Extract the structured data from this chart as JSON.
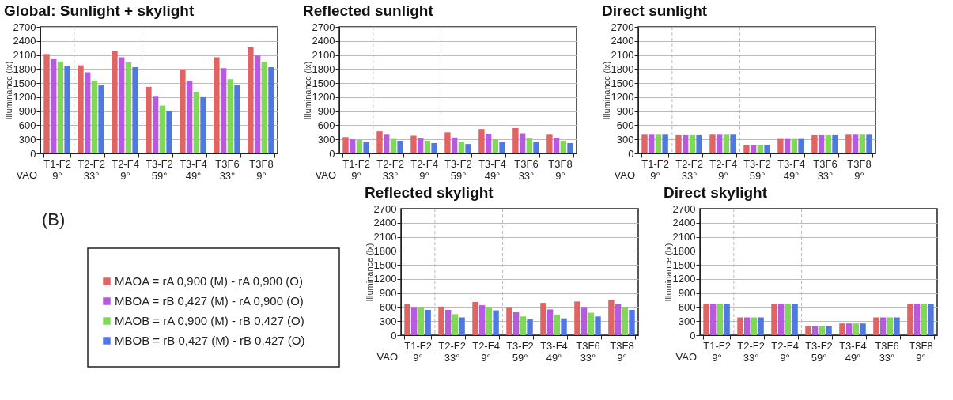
{
  "chart_data": [
    {
      "type": "bar",
      "title": "Global: Sunlight + skylight",
      "ylabel": "Illuminance (lx)",
      "categories": [
        "T1-F2 9°",
        "T2-F2 33°",
        "T2-F4 9°",
        "T3-F2 59°",
        "T3-F4 49°",
        "T3F6 33°",
        "T3F8 9°"
      ],
      "series": [
        {
          "name": "MAOA = rA 0,900 (M) - rA 0,900 (O)",
          "color": "#e06464",
          "values": [
            2120,
            1880,
            2190,
            1420,
            1790,
            2050,
            2260
          ]
        },
        {
          "name": "MBOA = rB 0,427 (M) - rA 0,900 (O)",
          "color": "#b65ae0",
          "values": [
            2010,
            1730,
            2050,
            1210,
            1550,
            1820,
            2090
          ]
        },
        {
          "name": "MAOB = rA 0,900 (M) - rB 0,427 (O)",
          "color": "#80d956",
          "values": [
            1960,
            1550,
            1940,
            1020,
            1310,
            1580,
            1960
          ]
        },
        {
          "name": "MBOB = rB 0,427 (M) - rB 0,427 (O)",
          "color": "#4f78e0",
          "values": [
            1870,
            1450,
            1840,
            910,
            1200,
            1450,
            1840
          ]
        }
      ],
      "ylim": [
        0,
        2700
      ],
      "yticks": [
        0,
        300,
        600,
        900,
        1200,
        1500,
        1800,
        2100,
        2400,
        2700
      ],
      "grid": "y",
      "legend": "bottom",
      "annotations": [
        "VAO",
        "(B)"
      ]
    },
    {
      "type": "bar",
      "title": "Reflected sunlight",
      "ylabel": "Illuminance (lx)",
      "categories": [
        "T1-F2 9°",
        "T2-F2 33°",
        "T2-F4 9°",
        "T3-F2 59°",
        "T3-F4 49°",
        "T3F6 33°",
        "T3F8 9°"
      ],
      "series": [
        {
          "color": "#e06464",
          "values": [
            350,
            470,
            380,
            450,
            520,
            540,
            400
          ]
        },
        {
          "color": "#b65ae0",
          "values": [
            300,
            400,
            320,
            340,
            420,
            430,
            330
          ]
        },
        {
          "color": "#80d956",
          "values": [
            290,
            310,
            270,
            250,
            300,
            320,
            270
          ]
        },
        {
          "color": "#4f78e0",
          "values": [
            240,
            270,
            220,
            200,
            240,
            250,
            220
          ]
        }
      ],
      "ylim": [
        0,
        2700
      ],
      "yticks": [
        0,
        300,
        600,
        900,
        1200,
        1500,
        1800,
        2100,
        2400,
        2700
      ],
      "grid": "y",
      "annotations": [
        "VAO"
      ]
    },
    {
      "type": "bar",
      "title": "Direct sunlight",
      "ylabel": "Illuminance (lx)",
      "categories": [
        "T1-F2 9°",
        "T2-F2 33°",
        "T2-F4 9°",
        "T3-F2 59°",
        "T3-F4 49°",
        "T3F6 33°",
        "T3F8 9°"
      ],
      "series": [
        {
          "color": "#e06464",
          "values": [
            400,
            390,
            400,
            170,
            310,
            390,
            400
          ]
        },
        {
          "color": "#b65ae0",
          "values": [
            400,
            390,
            400,
            170,
            310,
            390,
            400
          ]
        },
        {
          "color": "#80d956",
          "values": [
            400,
            390,
            400,
            170,
            310,
            390,
            400
          ]
        },
        {
          "color": "#4f78e0",
          "values": [
            400,
            390,
            400,
            170,
            310,
            390,
            400
          ]
        }
      ],
      "ylim": [
        0,
        2700
      ],
      "yticks": [
        0,
        300,
        600,
        900,
        1200,
        1500,
        1800,
        2100,
        2400,
        2700
      ],
      "grid": "y",
      "annotations": [
        "VAO"
      ]
    },
    {
      "type": "bar",
      "title": "Reflected skylight",
      "ylabel": "Illuminance (lx)",
      "categories": [
        "T1-F2 9°",
        "T2-F2 33°",
        "T2-F4 9°",
        "T3-F2 59°",
        "T3-F4 49°",
        "T3F6 33°",
        "T3F8 9°"
      ],
      "series": [
        {
          "color": "#e06464",
          "values": [
            660,
            610,
            710,
            600,
            690,
            720,
            760
          ]
        },
        {
          "color": "#b65ae0",
          "values": [
            600,
            540,
            640,
            490,
            550,
            600,
            660
          ]
        },
        {
          "color": "#80d956",
          "values": [
            600,
            450,
            600,
            400,
            440,
            480,
            600
          ]
        },
        {
          "color": "#4f78e0",
          "values": [
            540,
            380,
            530,
            340,
            360,
            400,
            540
          ]
        }
      ],
      "ylim": [
        0,
        2700
      ],
      "yticks": [
        0,
        300,
        600,
        900,
        1200,
        1500,
        1800,
        2100,
        2400,
        2700
      ],
      "grid": "y",
      "annotations": [
        "VAO"
      ]
    },
    {
      "type": "bar",
      "title": "Direct skylight",
      "ylabel": "Illuminance (lx)",
      "categories": [
        "T1-F2 9°",
        "T2-F2 33°",
        "T2-F4 9°",
        "T3-F2 59°",
        "T3-F4 49°",
        "T3F6 33°",
        "T3F8 9°"
      ],
      "series": [
        {
          "color": "#e06464",
          "values": [
            670,
            380,
            670,
            190,
            250,
            380,
            670
          ]
        },
        {
          "color": "#b65ae0",
          "values": [
            670,
            380,
            670,
            190,
            250,
            380,
            670
          ]
        },
        {
          "color": "#80d956",
          "values": [
            670,
            380,
            670,
            190,
            250,
            380,
            670
          ]
        },
        {
          "color": "#4f78e0",
          "values": [
            670,
            380,
            670,
            190,
            250,
            380,
            670
          ]
        }
      ],
      "ylim": [
        0,
        2700
      ],
      "yticks": [
        0,
        300,
        600,
        900,
        1200,
        1500,
        1800,
        2100,
        2400,
        2700
      ],
      "grid": "y",
      "annotations": [
        "VAO"
      ]
    }
  ]
}
